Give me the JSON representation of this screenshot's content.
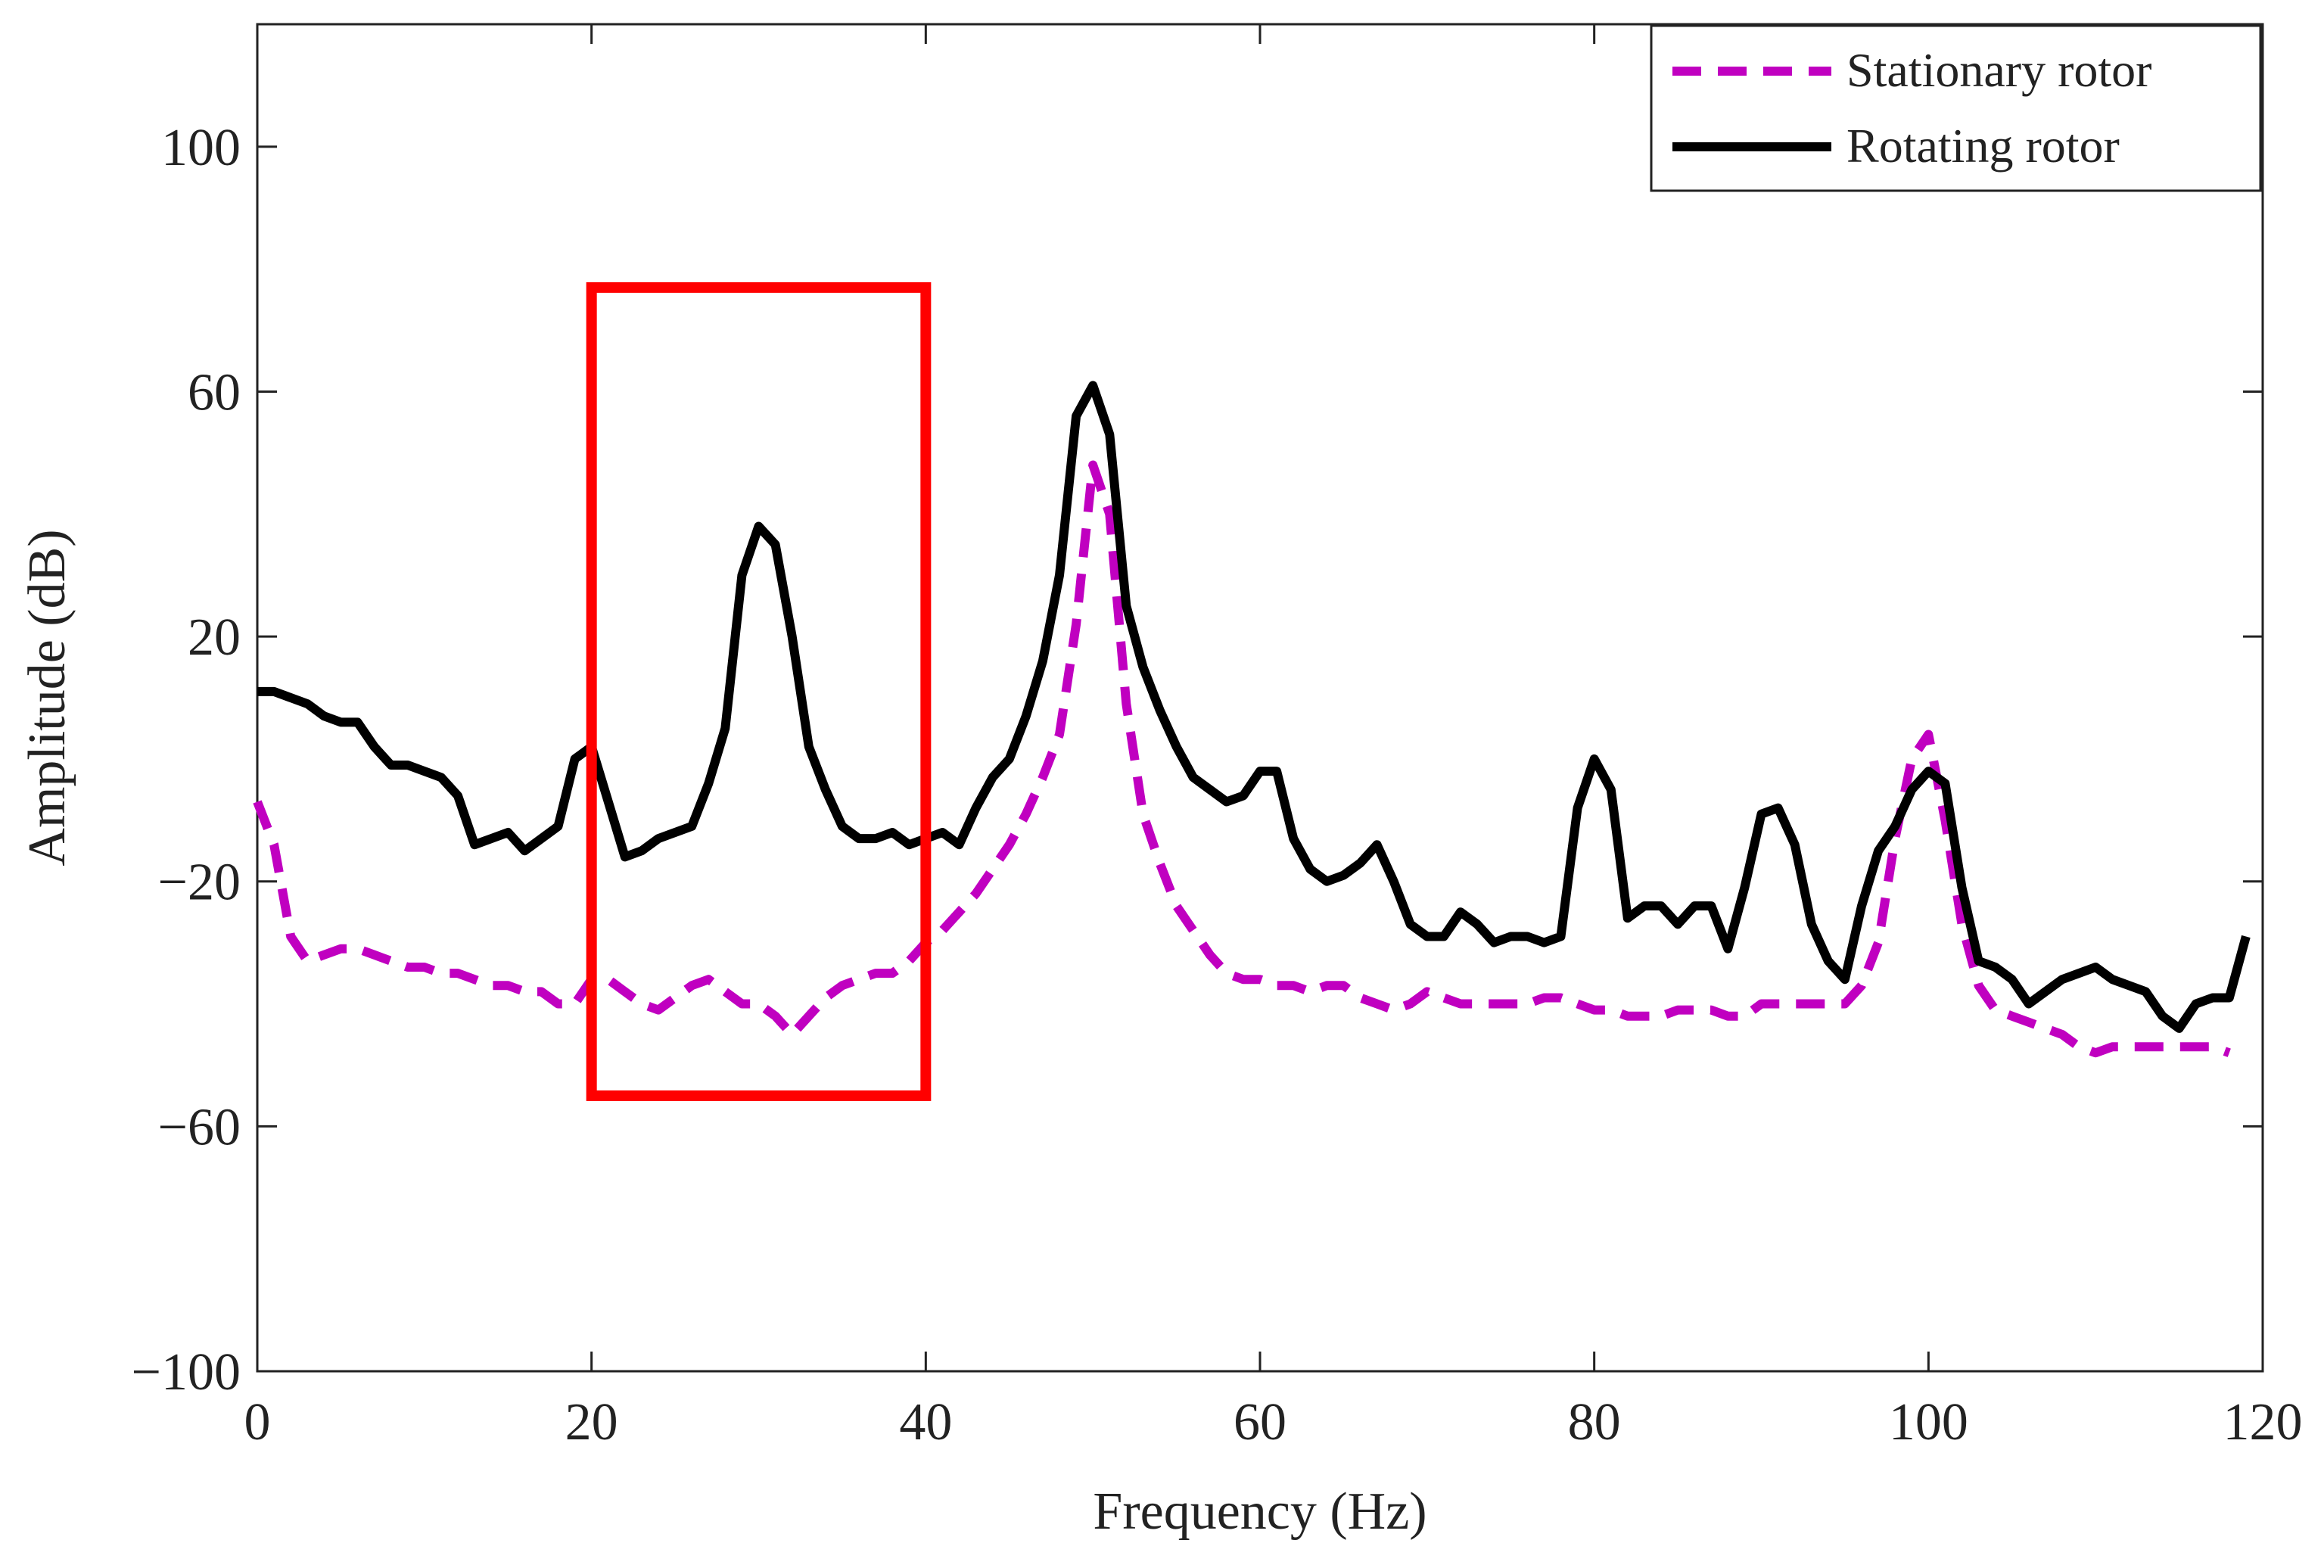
{
  "chart_data": {
    "type": "line",
    "title": "",
    "xlabel": "Frequency (Hz)",
    "ylabel": "Amplitude (dB)",
    "xlim": [
      0,
      120
    ],
    "ylim": [
      -100,
      120
    ],
    "xticks": [
      0,
      20,
      40,
      60,
      80,
      100,
      120
    ],
    "yticks": [
      -100,
      -60,
      -20,
      20,
      60,
      100
    ],
    "xtick_labels": [
      "0",
      "20",
      "40",
      "60",
      "80",
      "100",
      "120"
    ],
    "ytick_labels": [
      "−100",
      "−60",
      "−20",
      "20",
      "60",
      "100"
    ],
    "grid": false,
    "legend": "top-right",
    "series": [
      {
        "name": "Stationary rotor",
        "color": "#c000c0",
        "style": "dashed",
        "x": [
          0,
          1,
          2,
          3,
          4,
          5,
          6,
          7,
          8,
          9,
          10,
          11,
          12,
          13,
          14,
          15,
          16,
          17,
          18,
          19,
          20,
          21,
          22,
          23,
          24,
          25,
          26,
          27,
          28,
          29,
          30,
          31,
          32,
          33,
          34,
          35,
          36,
          37,
          38,
          39,
          40,
          41,
          42,
          43,
          44,
          45,
          46,
          47,
          48,
          49,
          50,
          51,
          52,
          53,
          54,
          55,
          56,
          57,
          58,
          59,
          60,
          61,
          62,
          63,
          64,
          65,
          66,
          67,
          68,
          69,
          70,
          71,
          72,
          73,
          74,
          75,
          76,
          77,
          78,
          79,
          80,
          81,
          82,
          83,
          84,
          85,
          86,
          87,
          88,
          89,
          90,
          91,
          92,
          93,
          94,
          95,
          96,
          97,
          98,
          99,
          100,
          101,
          102,
          103,
          104,
          105,
          106,
          107,
          108,
          109,
          110,
          111,
          112,
          113,
          114,
          115,
          116,
          117,
          118
        ],
        "y": [
          -7,
          -14,
          -29,
          -33,
          -32,
          -31,
          -31,
          -32,
          -33,
          -34,
          -34,
          -35,
          -35,
          -36,
          -37,
          -37,
          -38,
          -38,
          -40,
          -40,
          -36,
          -36,
          -38,
          -40,
          -41,
          -39,
          -37,
          -36,
          -38,
          -40,
          -40,
          -42,
          -45,
          -42,
          -39,
          -37,
          -36,
          -35,
          -35,
          -33,
          -30,
          -28,
          -25,
          -22,
          -18,
          -14,
          -9,
          -3,
          4,
          22,
          48,
          40,
          9,
          -9,
          -17,
          -24,
          -28,
          -32,
          -35,
          -36,
          -36,
          -37,
          -37,
          -38,
          -37,
          -37,
          -39,
          -40,
          -41,
          -40,
          -38,
          -39,
          -40,
          -40,
          -40,
          -40,
          -40,
          -39,
          -39,
          -40,
          -41,
          -41,
          -42,
          -42,
          -42,
          -41,
          -41,
          -41,
          -42,
          -42,
          -40,
          -40,
          -40,
          -40,
          -40,
          -40,
          -37,
          -30,
          -13,
          0,
          4,
          -10,
          -27,
          -37,
          -41,
          -42,
          -43,
          -44,
          -45,
          -47,
          -48,
          -47,
          -47,
          -47,
          -47,
          -47,
          -47,
          -47,
          -48
        ]
      },
      {
        "name": "Rotating rotor",
        "color": "#000000",
        "style": "solid",
        "x": [
          0,
          1,
          2,
          3,
          4,
          5,
          6,
          7,
          8,
          9,
          10,
          11,
          12,
          13,
          14,
          15,
          16,
          17,
          18,
          19,
          20,
          21,
          22,
          23,
          24,
          25,
          26,
          27,
          28,
          29,
          30,
          31,
          32,
          33,
          34,
          35,
          36,
          37,
          38,
          39,
          40,
          41,
          42,
          43,
          44,
          45,
          46,
          47,
          48,
          49,
          50,
          51,
          52,
          53,
          54,
          55,
          56,
          57,
          58,
          59,
          60,
          61,
          62,
          63,
          64,
          65,
          66,
          67,
          68,
          69,
          70,
          71,
          72,
          73,
          74,
          75,
          76,
          77,
          78,
          79,
          80,
          81,
          82,
          83,
          84,
          85,
          86,
          87,
          88,
          89,
          90,
          91,
          92,
          93,
          94,
          95,
          96,
          97,
          98,
          99,
          100,
          101,
          102,
          103,
          104,
          105,
          106,
          107,
          108,
          109,
          110,
          111,
          112,
          113,
          114,
          115,
          116,
          117,
          118,
          119
        ],
        "y": [
          11,
          11,
          10,
          9,
          7,
          6,
          6,
          2,
          -1,
          -1,
          -2,
          -3,
          -6,
          -14,
          -13,
          -12,
          -15,
          -13,
          -11,
          0,
          2,
          -7,
          -16,
          -15,
          -13,
          -12,
          -11,
          -4,
          5,
          30,
          38,
          35,
          20,
          2,
          -5,
          -11,
          -13,
          -13,
          -12,
          -14,
          -13,
          -12,
          -14,
          -8,
          -3,
          0,
          7,
          16,
          30,
          56,
          61,
          53,
          25,
          15,
          8,
          2,
          -3,
          -5,
          -7,
          -6,
          -2,
          -2,
          -13,
          -18,
          -20,
          -19,
          -17,
          -14,
          -20,
          -27,
          -29,
          -29,
          -25,
          -27,
          -30,
          -29,
          -29,
          -30,
          -29,
          -8,
          0,
          -5,
          -26,
          -24,
          -24,
          -27,
          -24,
          -24,
          -31,
          -21,
          -9,
          -8,
          -14,
          -27,
          -33,
          -36,
          -24,
          -15,
          -11,
          -5,
          -2,
          -4,
          -21,
          -33,
          -34,
          -36,
          -40,
          -38,
          -36,
          -35,
          -34,
          -36,
          -37,
          -38,
          -42,
          -44,
          -40,
          -39,
          -39,
          -29
        ]
      }
    ],
    "annotations": [
      {
        "type": "rectangle",
        "color": "#ff0000",
        "x0": 20,
        "x1": 40,
        "y0": -55,
        "y1": 77
      }
    ]
  }
}
